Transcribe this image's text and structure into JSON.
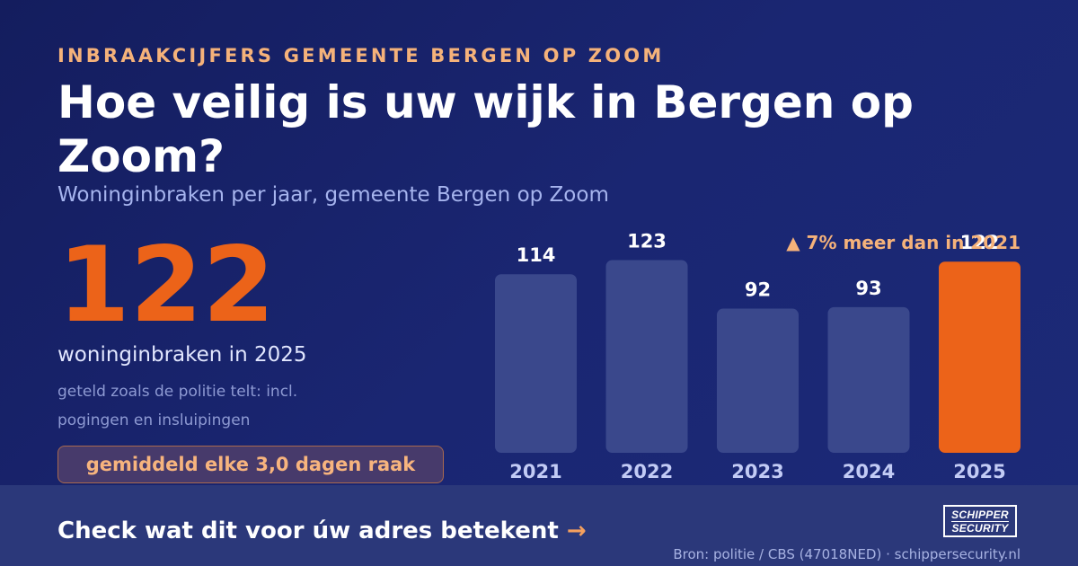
{
  "header": {
    "eyebrow": "INBRAAKCIJFERS GEMEENTE BERGEN OP ZOOM",
    "title": "Hoe veilig is uw wijk in Bergen op Zoom?",
    "subtitle": "Woninginbraken per jaar, gemeente Bergen op Zoom"
  },
  "highlight": {
    "number": "122",
    "label": "woninginbraken in 2025",
    "note": "geteld zoals de politie telt: incl. pogingen en insluipingen",
    "pill": "gemiddeld elke 3,0 dagen raak",
    "change": "▲ 7% meer dan in 2021"
  },
  "footer": {
    "cta": "Check wat dit voor úw adres betekent",
    "cta_arrow": "→",
    "logo_line1": "SCHIPPER",
    "logo_line2": "SECURITY",
    "source": "Bron: politie / CBS (47018NED) · schippersecurity.nl"
  },
  "colors": {
    "bar": "#3a488c",
    "bar_highlight": "#ec6319",
    "value_label": "#ffffff",
    "tick_label": "#c2cbf5"
  },
  "chart_data": {
    "type": "bar",
    "categories": [
      "2021",
      "2022",
      "2023",
      "2024",
      "2025"
    ],
    "values": [
      114,
      123,
      92,
      93,
      122
    ],
    "highlight_index": 4,
    "ylim": [
      0,
      150
    ],
    "grid": false,
    "legend": "none"
  }
}
